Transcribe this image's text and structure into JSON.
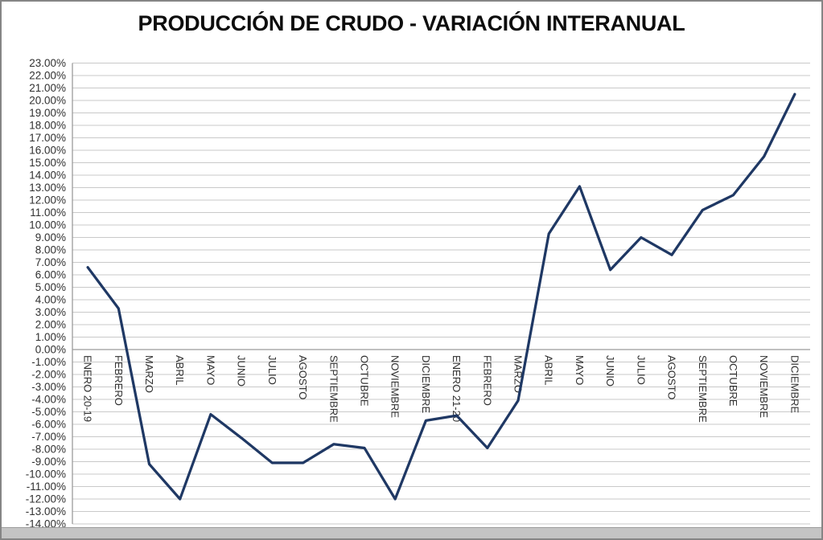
{
  "title": "PRODUCCIÓN DE CRUDO - VARIACIÓN INTERANUAL",
  "chart_data": {
    "type": "line",
    "title": "PRODUCCIÓN DE CRUDO - VARIACIÓN INTERANUAL",
    "categories": [
      "ENERO 20-19",
      "FEBRERO",
      "MARZO",
      "ABRIL",
      "MAYO",
      "JUNIO",
      "JULIO",
      "AGOSTO",
      "SEPTIEMBRE",
      "OCTUBRE",
      "NOVIEMBRE",
      "DICIEMBRE",
      "ENERO 21-20",
      "FEBRERO",
      "MARZO",
      "ABRIL",
      "MAYO",
      "JUNIO",
      "JULIO",
      "AGOSTO",
      "SEPTIEMBRE",
      "OCTUBRE",
      "NOVIEMBRE",
      "DICIEMBRE"
    ],
    "values": [
      6.6,
      3.3,
      -9.2,
      -12,
      -5.2,
      -7.1,
      -9.1,
      -9.1,
      -7.6,
      -7.9,
      -12,
      -5.7,
      -5.3,
      -7.9,
      -4.1,
      9.3,
      13.1,
      6.4,
      9,
      7.6,
      11.2,
      12.4,
      15.5,
      20.5
    ],
    "unit": "%",
    "xlabel": "",
    "ylabel": "",
    "ylim": [
      -14,
      23
    ],
    "ytick_step": 1,
    "ytick_label_format": "0.00%",
    "grid": true,
    "legend": false,
    "x_labels_rotated_degrees": 90,
    "line_color": "#1f3864",
    "gridline_color": "#c9c9c9",
    "axis_line_color": "#9b9b9b",
    "label_color": "#303030",
    "title_color": "#0d0d0d"
  }
}
